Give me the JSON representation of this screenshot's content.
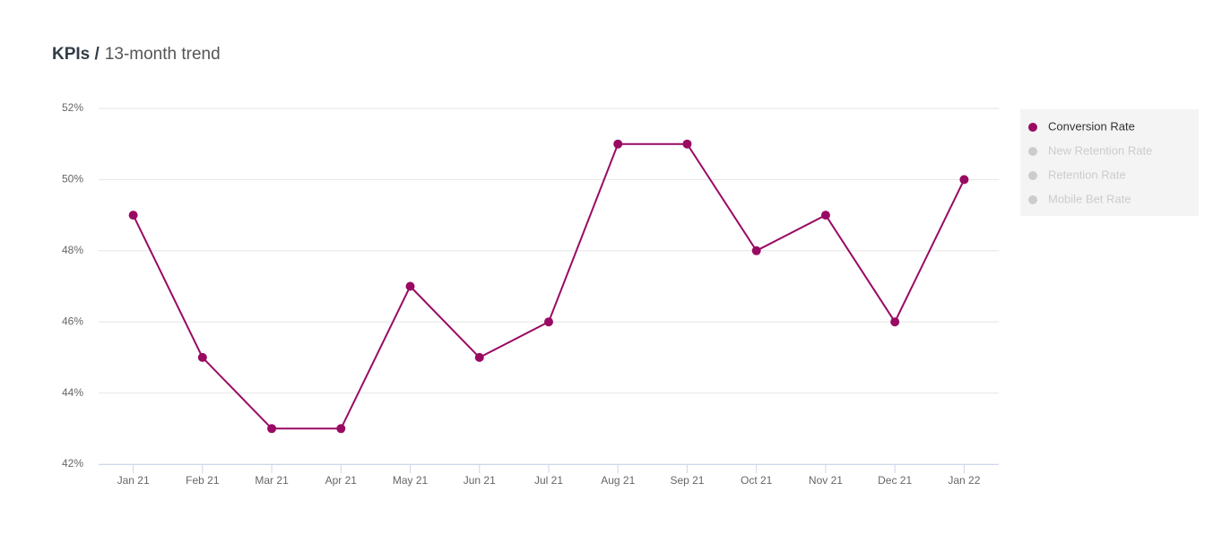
{
  "chart_data": {
    "type": "line",
    "title": "KPIs /",
    "subtitle": "13-month trend",
    "categories": [
      "Jan 21",
      "Feb 21",
      "Mar 21",
      "Apr 21",
      "May 21",
      "Jun 21",
      "Jul 21",
      "Aug 21",
      "Sep 21",
      "Oct 21",
      "Nov 21",
      "Dec 21",
      "Jan 22"
    ],
    "series": [
      {
        "name": "Conversion Rate",
        "color": "#990a63",
        "visible": true,
        "values": [
          49,
          45,
          43,
          43,
          47,
          45,
          46,
          51,
          51,
          48,
          49,
          46,
          50
        ]
      },
      {
        "name": "New Retention Rate",
        "color": "#cccccc",
        "visible": false
      },
      {
        "name": "Retention Rate",
        "color": "#cccccc",
        "visible": false
      },
      {
        "name": "Mobile Bet Rate",
        "color": "#cccccc",
        "visible": false
      }
    ],
    "ylim": [
      42,
      52
    ],
    "yticks": [
      {
        "value": 42,
        "label": "42%"
      },
      {
        "value": 44,
        "label": "44%"
      },
      {
        "value": 46,
        "label": "46%"
      },
      {
        "value": 48,
        "label": "48%"
      },
      {
        "value": 50,
        "label": "50%"
      },
      {
        "value": 52,
        "label": "52%"
      }
    ],
    "grid": true,
    "legend": "right"
  }
}
